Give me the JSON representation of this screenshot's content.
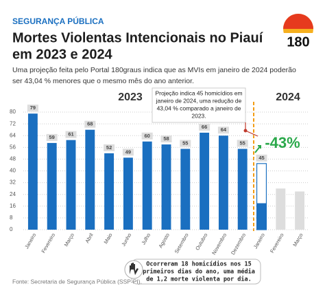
{
  "header": {
    "kicker": "SEGURANÇA PÚBLICA",
    "title_lines": [
      "Mortes Violentas Intencionais no Piauí",
      "em 2023 e 2024"
    ],
    "subtitle_lines": [
      "Uma projeção feita pelo Portal 180graus indica que as MVIs em janeiro de 2024 poderão",
      "ser 43,04 % menores que  o mesmo mês do ano anterior."
    ],
    "logo": "180"
  },
  "chart_data": {
    "type": "bar",
    "period_labels": [
      "2023",
      "2024"
    ],
    "categories": [
      "Janeiro",
      "Fevereiro",
      "Março",
      "Abril",
      "Maio",
      "Junho",
      "Julho",
      "Agosto",
      "Setembro",
      "Outubro",
      "Novembro",
      "Dezembro",
      "Janeiro",
      "Fevereiro",
      "Março"
    ],
    "series": [
      {
        "color": "#1a6fc0",
        "labelled": true,
        "values": [
          79,
          59,
          61,
          68,
          52,
          49,
          60,
          58,
          55,
          66,
          64,
          55,
          null,
          null,
          null
        ]
      },
      {
        "color": "#1a6fc0",
        "style": "outline",
        "labelled": true,
        "values": [
          null,
          null,
          null,
          null,
          null,
          null,
          null,
          null,
          null,
          null,
          null,
          null,
          45,
          null,
          null
        ]
      },
      {
        "color": "#1a6fc0",
        "values": [
          null,
          null,
          null,
          null,
          null,
          null,
          null,
          null,
          null,
          null,
          null,
          null,
          18,
          null,
          null
        ]
      },
      {
        "color": "#dddddd",
        "values": [
          null,
          null,
          null,
          null,
          null,
          null,
          null,
          null,
          null,
          null,
          null,
          null,
          null,
          28,
          26
        ]
      }
    ],
    "ylim": [
      0,
      84
    ],
    "yticks": [
      0,
      8,
      16,
      24,
      32,
      40,
      48,
      56,
      64,
      72,
      80
    ],
    "grid": true,
    "annotation_lines": [
      "Projeção indica 45 homicídios em",
      "janeiro de 2024, uma redução de",
      "43,04 % comparado a janeiro de",
      "2023."
    ],
    "change_label": "-43%",
    "note_lines": [
      "Ocorreram 18 homicídios nos 15",
      "primeiros dias do ano, uma média",
      "de 1,2 morte violenta por dia."
    ],
    "source": "Fonte: Secretaria de Segurança Pública (SSP-PI)."
  }
}
